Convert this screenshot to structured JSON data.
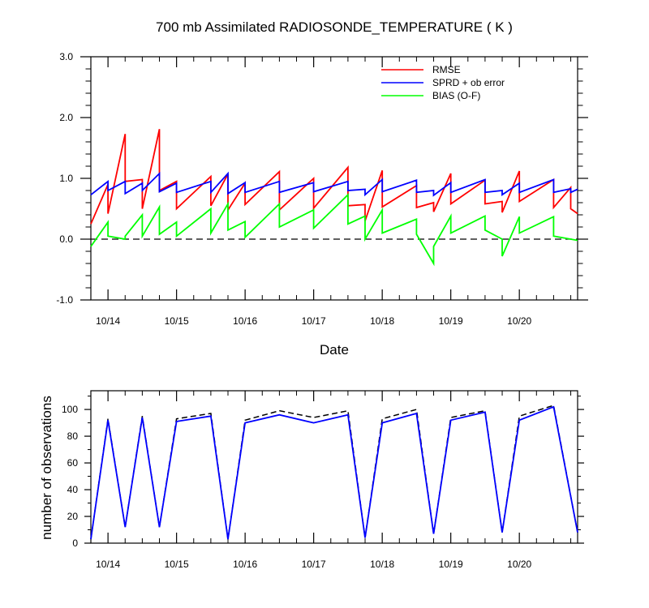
{
  "colors": {
    "rmse": "#ff0000",
    "spread": "#0000ff",
    "bias": "#00ff00",
    "obs_possible": "#000000",
    "obs_used": "#0000ff",
    "zero_line": "#000000"
  },
  "chart_data": [
    {
      "type": "line",
      "title": "700 mb Assimilated RADIOSONDE_TEMPERATURE ( K )",
      "xlabel": "Date",
      "ylabel": "",
      "xlim": [
        13.75,
        20.85
      ],
      "ylim": [
        -1.0,
        3.0
      ],
      "x_tick_values": [
        14,
        15,
        16,
        17,
        18,
        19,
        20
      ],
      "x_tick_labels": [
        "10/14",
        "10/15",
        "10/16",
        "10/17",
        "10/18",
        "10/19",
        "10/20"
      ],
      "y_tick_values": [
        -1.0,
        0.0,
        1.0,
        2.0,
        3.0
      ],
      "y_tick_labels": [
        "-1.0",
        "0.0",
        "1.0",
        "2.0",
        "3.0"
      ],
      "zero_line": true,
      "legend_position": "top-right",
      "series": [
        {
          "name": "RMSE",
          "color_key": "rmse",
          "x": [
            13.75,
            14.0,
            14.0,
            14.25,
            14.25,
            14.5,
            14.5,
            14.75,
            14.75,
            15.0,
            15.0,
            15.5,
            15.5,
            15.75,
            15.75,
            16.0,
            16.0,
            16.5,
            16.5,
            17.0,
            17.0,
            17.5,
            17.5,
            17.75,
            17.75,
            18.0,
            18.0,
            18.5,
            18.5,
            18.75,
            18.75,
            19.0,
            19.0,
            19.5,
            19.5,
            19.75,
            19.75,
            20.0,
            20.0,
            20.5,
            20.5,
            20.75,
            20.75,
            20.85
          ],
          "y": [
            0.25,
            0.9,
            0.42,
            1.73,
            0.95,
            0.98,
            0.5,
            1.81,
            0.8,
            0.95,
            0.5,
            1.03,
            0.55,
            1.07,
            0.48,
            0.92,
            0.57,
            1.11,
            0.48,
            1.0,
            0.51,
            1.18,
            0.55,
            0.57,
            0.3,
            1.13,
            0.53,
            0.88,
            0.52,
            0.6,
            0.45,
            1.08,
            0.58,
            0.97,
            0.58,
            0.62,
            0.44,
            1.12,
            0.62,
            0.98,
            0.52,
            0.85,
            0.5,
            0.42
          ]
        },
        {
          "name": "SPRD + ob error",
          "color_key": "spread",
          "x": [
            13.75,
            14.0,
            14.0,
            14.25,
            14.25,
            14.5,
            14.5,
            14.75,
            14.75,
            15.0,
            15.0,
            15.5,
            15.5,
            15.75,
            15.75,
            16.0,
            16.0,
            16.5,
            16.5,
            17.0,
            17.0,
            17.5,
            17.5,
            17.75,
            17.75,
            18.0,
            18.0,
            18.5,
            18.5,
            18.75,
            18.75,
            19.0,
            19.0,
            19.5,
            19.5,
            19.75,
            19.75,
            20.0,
            20.0,
            20.5,
            20.5,
            20.75,
            20.75,
            20.85
          ],
          "y": [
            0.73,
            0.95,
            0.8,
            0.95,
            0.75,
            0.92,
            0.8,
            1.08,
            0.78,
            0.92,
            0.77,
            0.95,
            0.77,
            1.08,
            0.75,
            0.93,
            0.77,
            0.95,
            0.77,
            0.93,
            0.78,
            0.95,
            0.8,
            0.82,
            0.73,
            0.98,
            0.78,
            0.97,
            0.77,
            0.8,
            0.72,
            0.93,
            0.77,
            0.98,
            0.77,
            0.8,
            0.73,
            0.92,
            0.77,
            0.98,
            0.77,
            0.83,
            0.77,
            0.82
          ]
        },
        {
          "name": "BIAS (O-F)",
          "color_key": "bias",
          "x": [
            13.75,
            14.0,
            14.0,
            14.25,
            14.25,
            14.5,
            14.5,
            14.75,
            14.75,
            15.0,
            15.0,
            15.5,
            15.5,
            15.75,
            15.75,
            16.0,
            16.0,
            16.5,
            16.5,
            17.0,
            17.0,
            17.5,
            17.5,
            17.75,
            17.75,
            18.0,
            18.0,
            18.5,
            18.5,
            18.75,
            18.75,
            19.0,
            19.0,
            19.5,
            19.5,
            19.75,
            19.75,
            20.0,
            20.0,
            20.5,
            20.5,
            20.75,
            20.75,
            20.85
          ],
          "y": [
            -0.12,
            0.28,
            0.05,
            0.0,
            0.05,
            0.4,
            0.05,
            0.53,
            0.08,
            0.28,
            0.05,
            0.5,
            0.1,
            0.58,
            0.15,
            0.29,
            0.03,
            0.58,
            0.2,
            0.48,
            0.18,
            0.73,
            0.25,
            0.38,
            0.0,
            0.48,
            0.1,
            0.33,
            0.08,
            -0.4,
            -0.12,
            0.38,
            0.1,
            0.38,
            0.15,
            0.0,
            -0.28,
            0.37,
            0.1,
            0.37,
            0.05,
            0.0,
            0.0,
            -0.02
          ]
        }
      ],
      "legend": {
        "rmse_label": "RMSE",
        "spread_label": "SPRD + ob error",
        "bias_label": "BIAS (O-F)"
      }
    },
    {
      "type": "line",
      "title": "",
      "xlabel": "",
      "ylabel": "number of observations",
      "xlim": [
        13.75,
        20.85
      ],
      "ylim": [
        0,
        114
      ],
      "x_tick_values": [
        14,
        15,
        16,
        17,
        18,
        19,
        20
      ],
      "x_tick_labels": [
        "10/14",
        "10/15",
        "10/16",
        "10/17",
        "10/18",
        "10/19",
        "10/20"
      ],
      "y_tick_values": [
        0,
        20,
        40,
        60,
        80,
        100
      ],
      "y_tick_labels": [
        "0",
        "20",
        "40",
        "60",
        "80",
        "100"
      ],
      "series": [
        {
          "name": "",
          "color_key": "obs_possible",
          "dashed": true,
          "x": [
            13.75,
            14.0,
            14.25,
            14.5,
            14.75,
            15.0,
            15.5,
            15.75,
            16.0,
            16.5,
            17.0,
            17.5,
            17.75,
            18.0,
            18.5,
            18.75,
            19.0,
            19.5,
            19.75,
            20.0,
            20.5,
            20.85
          ],
          "y": [
            3,
            93,
            12,
            95,
            12,
            93,
            97,
            3,
            92,
            99,
            94,
            99,
            4,
            93,
            100,
            7,
            94,
            99,
            8,
            95,
            103,
            8
          ]
        },
        {
          "name": "",
          "color_key": "obs_used",
          "dashed": false,
          "x": [
            13.75,
            14.0,
            14.25,
            14.5,
            14.75,
            15.0,
            15.5,
            15.75,
            16.0,
            16.5,
            17.0,
            17.5,
            17.75,
            18.0,
            18.5,
            18.75,
            19.0,
            19.5,
            19.75,
            20.0,
            20.5,
            20.85
          ],
          "y": [
            3,
            92,
            12,
            94,
            12,
            91,
            95,
            3,
            90,
            96,
            90,
            96,
            4,
            90,
            97,
            7,
            92,
            98,
            8,
            92,
            102,
            8
          ]
        }
      ]
    }
  ]
}
